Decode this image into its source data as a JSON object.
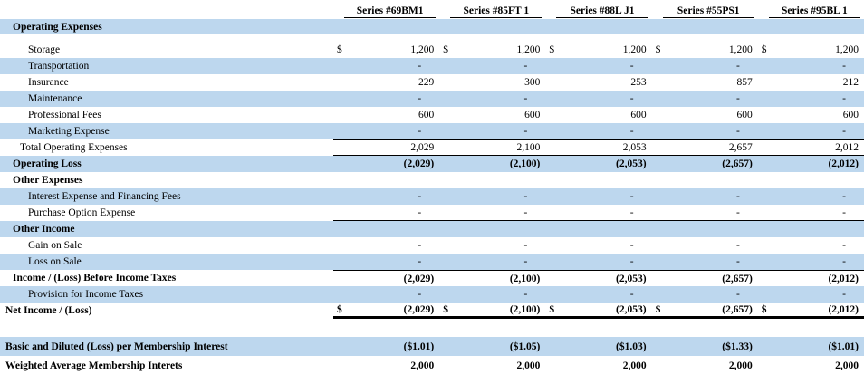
{
  "colors": {
    "row_shade": "#BDD7EE",
    "border": "#000000",
    "text": "#000000"
  },
  "table": {
    "dollar_symbol": "$",
    "dash": "-",
    "columns": [
      "Series #69BM1",
      "Series #85FT 1",
      "Series #88L J1",
      "Series #55PS1",
      "Series #95BL 1"
    ],
    "rows": [
      {
        "label": "Operating Expenses",
        "indent": 1,
        "bold": true,
        "shade": true,
        "h": "h-sec",
        "values": [
          "",
          "",
          "",
          "",
          ""
        ]
      },
      {
        "spacer": 8
      },
      {
        "label": "Storage",
        "indent": 3,
        "dollar": true,
        "values": [
          "1,200",
          "1,200",
          "1,200",
          "1,200",
          "1,200"
        ]
      },
      {
        "label": "Transportation",
        "indent": 3,
        "shade": true,
        "values": [
          "-",
          "-",
          "-",
          "-",
          "-"
        ]
      },
      {
        "label": "Insurance",
        "indent": 3,
        "values": [
          "229",
          "300",
          "253",
          "857",
          "212"
        ]
      },
      {
        "label": "Maintenance",
        "indent": 3,
        "shade": true,
        "values": [
          "-",
          "-",
          "-",
          "-",
          "-"
        ]
      },
      {
        "label": "Professional Fees",
        "indent": 3,
        "values": [
          "600",
          "600",
          "600",
          "600",
          "600"
        ]
      },
      {
        "label": "Marketing Expense",
        "indent": 3,
        "shade": true,
        "values": [
          "-",
          "-",
          "-",
          "-",
          "-"
        ]
      },
      {
        "label": "Total Operating Expenses",
        "indent": 2,
        "border": "tb",
        "values": [
          "2,029",
          "2,100",
          "2,053",
          "2,657",
          "2,012"
        ]
      },
      {
        "label": "Operating Loss",
        "indent": 1,
        "bold": true,
        "shade": true,
        "values": [
          "(2,029)",
          "(2,100)",
          "(2,053)",
          "(2,657)",
          "(2,012)"
        ]
      },
      {
        "label": "Other Expenses",
        "indent": 1,
        "bold": true,
        "values": [
          "",
          "",
          "",
          "",
          ""
        ]
      },
      {
        "label": "Interest Expense and Financing Fees",
        "indent": 3,
        "shade": true,
        "values": [
          "-",
          "-",
          "-",
          "-",
          "-"
        ]
      },
      {
        "label": "Purchase Option Expense",
        "indent": 3,
        "border": "b",
        "values": [
          "-",
          "-",
          "-",
          "-",
          "-"
        ]
      },
      {
        "label": "Other Income",
        "indent": 1,
        "bold": true,
        "shade": true,
        "values": [
          "",
          "",
          "",
          "",
          ""
        ]
      },
      {
        "label": "Gain on Sale",
        "indent": 3,
        "values": [
          "-",
          "-",
          "-",
          "-",
          "-"
        ]
      },
      {
        "label": "Loss on Sale",
        "indent": 3,
        "shade": true,
        "values": [
          "-",
          "-",
          "-",
          "-",
          "-"
        ]
      },
      {
        "label": "Income / (Loss) Before Income Taxes",
        "indent": 1,
        "bold": true,
        "border": "t",
        "values": [
          "(2,029)",
          "(2,100)",
          "(2,053)",
          "(2,657)",
          "(2,012)"
        ]
      },
      {
        "label": "Provision for Income Taxes",
        "indent": 3,
        "shade": true,
        "values": [
          "-",
          "-",
          "-",
          "-",
          "-"
        ]
      },
      {
        "label": "Net Income / (Loss)",
        "indent": 0,
        "bold": true,
        "dollar": true,
        "border": "net",
        "values": [
          "(2,029)",
          "(2,100)",
          "(2,053)",
          "(2,657)",
          "(2,012)"
        ]
      },
      {
        "spacer": 20
      },
      {
        "label": "Basic and Diluted (Loss) per Membership Interest",
        "indent": 0,
        "bold": true,
        "shade": true,
        "h": "h-21",
        "values": [
          "($1.01)",
          "($1.05)",
          "($1.03)",
          "($1.33)",
          "($1.01)"
        ]
      },
      {
        "label": "Weighted Average Membership Interets",
        "indent": 0,
        "bold": true,
        "h": "h-21",
        "values": [
          "2,000",
          "2,000",
          "2,000",
          "2,000",
          "2,000"
        ]
      }
    ]
  }
}
